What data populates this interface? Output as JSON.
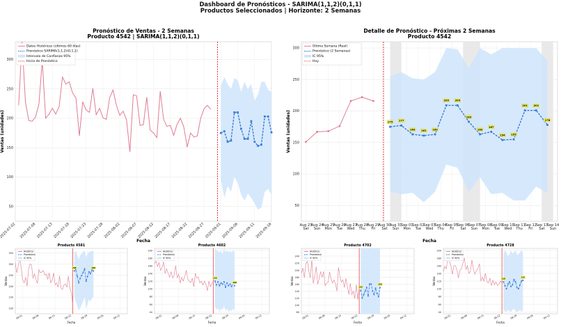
{
  "header": {
    "line1": "Dashboard de Pronósticos - SARIMA(1,1,2)(0,1,1)",
    "line2": "Productos Seleccionados | Horizonte: 2 Semanas"
  },
  "colors": {
    "hist": "#e07b91",
    "forecast": "#3b7dd8",
    "ci": "#cfe5fb",
    "cutoff": "#e32b2b",
    "label_bg": "#f5f56a",
    "weekend": "#e4e4e4"
  },
  "chart_data": [
    {
      "type": "line",
      "title": "Pronóstico de Ventas - 2 Semanas",
      "subtitle": "Producto 4542 | SARIMA(1,1,2)(0,1,1)",
      "xlabel": "Fecha",
      "ylabel": "Ventas (unidades)",
      "ylim": [
        25,
        330
      ],
      "yticks": [
        50,
        100,
        150,
        200,
        250,
        300
      ],
      "xlim": [
        0,
        76
      ],
      "xticks": [
        [
          0,
          "2025-07-02"
        ],
        [
          6,
          "2025-07-08"
        ],
        [
          11,
          "2025-07-13"
        ],
        [
          16,
          "2025-07-18"
        ],
        [
          21,
          "2025-07-23"
        ],
        [
          26,
          "2025-07-28"
        ],
        [
          31,
          "2025-08-02"
        ],
        [
          36,
          "2025-08-07"
        ],
        [
          41,
          "2025-08-12"
        ],
        [
          46,
          "2025-08-17"
        ],
        [
          51,
          "2025-08-22"
        ],
        [
          56,
          "2025-08-27"
        ],
        [
          61,
          "2025-09-01"
        ],
        [
          66,
          "2025-09-06"
        ],
        [
          71,
          "2025-09-11"
        ],
        [
          76,
          "2025-09-16"
        ]
      ],
      "legend": [
        "Datos Históricos (últimos 60 días)",
        "Pronóstico SARIMA(1,1,2)(0,1,1)",
        "Intervalo de Confianza 95%",
        "Inicio de Pronóstico"
      ],
      "legend_position": "top-left",
      "grid": true,
      "history_start": 1,
      "history": [
        222,
        330,
        228,
        196,
        195,
        202,
        224,
        298,
        200,
        207,
        217,
        207,
        220,
        270,
        258,
        262,
        243,
        234,
        170,
        228,
        214,
        210,
        251,
        206,
        217,
        201,
        198,
        235,
        248,
        222,
        205,
        212,
        197,
        143,
        240,
        238,
        188,
        189,
        236,
        180,
        175,
        167,
        246,
        198,
        186,
        188,
        171,
        190,
        200,
        185,
        151,
        175,
        168,
        170,
        200,
        216,
        222,
        215
      ],
      "forecast_start": 61,
      "forecast": [
        175,
        178,
        160,
        162,
        210,
        210,
        182,
        165,
        165,
        195,
        160,
        153,
        155,
        203,
        203,
        176
      ],
      "ci_upper": [
        255,
        270,
        258,
        250,
        268,
        265,
        245,
        262,
        250,
        258,
        230,
        240,
        262,
        262,
        248,
        245
      ],
      "ci_lower": [
        95,
        65,
        85,
        75,
        100,
        90,
        70,
        60,
        72,
        65,
        55,
        45,
        48,
        75,
        80,
        70
      ],
      "cutoff": 60
    },
    {
      "type": "line",
      "title": "Detalle de Pronóstico - Próximas 2 Semanas",
      "subtitle": "Producto 4542",
      "xlabel": "Fecha",
      "ylabel": "Ventas (unidades)",
      "ylim": [
        25,
        310
      ],
      "yticks": [
        50,
        100,
        150,
        200,
        250,
        300
      ],
      "xlim": [
        -0.4,
        22.4
      ],
      "xticks": [
        [
          "Aug 23",
          "Sat"
        ],
        [
          "Aug 24",
          "Sun"
        ],
        [
          "Aug 25",
          "Mon"
        ],
        [
          "Aug 26",
          "Tue"
        ],
        [
          "Aug 27",
          "Wed"
        ],
        [
          "Aug 28",
          "Thu"
        ],
        [
          "Aug 29",
          "Fri"
        ],
        [
          "Aug 30",
          "Sat"
        ],
        [
          "Aug 31",
          "Sun"
        ],
        [
          "Sep 01",
          "Mon"
        ],
        [
          "Sep 02",
          "Tue"
        ],
        [
          "Sep 03",
          "Wed"
        ],
        [
          "Sep 04",
          "Thu"
        ],
        [
          "Sep 05",
          "Fri"
        ],
        [
          "Sep 06",
          "Sat"
        ],
        [
          "Sep 07",
          "Sun"
        ],
        [
          "Sep 08",
          "Mon"
        ],
        [
          "Sep 09",
          "Tue"
        ],
        [
          "Sep 10",
          "Wed"
        ],
        [
          "Sep 11",
          "Thu"
        ],
        [
          "Sep 12",
          "Fri"
        ],
        [
          "Sep 13",
          "Sat"
        ],
        [
          "Sep 14",
          "Sun"
        ]
      ],
      "legend": [
        "Última Semana (Real)",
        "Pronóstico (2 Semanas)",
        "IC 95%",
        "Hoy"
      ],
      "legend_position": "top-left",
      "grid": true,
      "history_start": 0,
      "history": [
        151,
        167,
        168,
        176,
        216,
        222,
        216
      ],
      "forecast_start": 7.5,
      "forecast": [
        175,
        177,
        163,
        161,
        163,
        209,
        209,
        183,
        163,
        167,
        154,
        155,
        201,
        201,
        178
      ],
      "labels": [
        "175",
        "177",
        "163",
        "161",
        "163",
        "209",
        "209",
        "183",
        "163",
        "167",
        "154",
        "155",
        "201",
        "201",
        "178"
      ],
      "ci_upper": [
        255,
        262,
        252,
        250,
        262,
        300,
        298,
        268,
        300,
        290,
        300,
        300,
        300,
        300,
        280
      ],
      "ci_lower": [
        72,
        68,
        70,
        55,
        72,
        115,
        110,
        72,
        95,
        68,
        70,
        58,
        58,
        80,
        70
      ],
      "cutoff": 6.9,
      "weekend_shade": [
        [
          7.5,
          8.5
        ],
        [
          14,
          15.5
        ],
        [
          21,
          22
        ]
      ]
    },
    {
      "type": "line",
      "title": "Producto 4581",
      "xlabel": "Fecha",
      "ylabel": "Ventas",
      "ylim": [
        75,
        370
      ],
      "yticks": [
        100,
        150,
        200,
        250,
        300,
        350
      ],
      "xlim": [
        0,
        76
      ],
      "xticks": [
        [
          5,
          "08-01"
        ],
        [
          16,
          "08-08"
        ],
        [
          27,
          "08-15"
        ],
        [
          38,
          "08-22"
        ],
        [
          49,
          "08-29"
        ],
        [
          60,
          "09-05"
        ],
        [
          71,
          "09-12"
        ]
      ],
      "legend": [
        "Histórico",
        "Pronóstico",
        "IC 95%"
      ],
      "history_start": 0,
      "history": [
        305,
        260,
        290,
        330,
        282,
        228,
        215,
        240,
        200,
        278,
        300,
        295,
        235,
        255,
        230,
        212,
        274,
        260,
        263,
        270,
        250,
        255,
        230,
        260,
        215,
        225,
        260,
        205,
        215,
        195,
        245,
        190,
        185,
        205,
        210,
        195,
        245,
        190,
        170,
        120
      ],
      "forecast_start": 40,
      "forecast": [
        268,
        275,
        245,
        215,
        235,
        248,
        262,
        278,
        222,
        244,
        264,
        256,
        272,
        268
      ],
      "ci_upper": [
        350,
        360,
        340,
        320,
        340,
        345,
        355,
        360,
        330,
        345,
        355,
        355,
        360,
        358
      ],
      "ci_lower": [
        150,
        130,
        110,
        90,
        100,
        115,
        130,
        150,
        100,
        120,
        140,
        130,
        145,
        150
      ],
      "labels": {
        "first": "268",
        "last": "268"
      },
      "cutoff": 39
    },
    {
      "type": "line",
      "title": "Producto 4602",
      "xlabel": "Fecha",
      "ylabel": "Ventas",
      "ylim": [
        35,
        205
      ],
      "yticks": [
        40,
        60,
        80,
        100,
        120,
        140,
        160,
        180,
        200
      ],
      "xlim": [
        0,
        76
      ],
      "xticks": [
        [
          5,
          "08-01"
        ],
        [
          16,
          "08-08"
        ],
        [
          27,
          "08-15"
        ],
        [
          38,
          "08-22"
        ],
        [
          49,
          "08-29"
        ],
        [
          60,
          "09-05"
        ],
        [
          71,
          "09-12"
        ]
      ],
      "legend": [
        "Histórico",
        "Pronóstico",
        "IC 95%"
      ],
      "history_start": 0,
      "history": [
        165,
        172,
        158,
        168,
        148,
        155,
        170,
        140,
        152,
        140,
        130,
        144,
        128,
        135,
        160,
        128,
        138,
        115,
        130,
        120,
        132,
        148,
        125,
        120,
        116,
        128,
        105,
        140,
        128,
        130,
        115,
        120,
        110,
        120,
        112,
        95,
        120,
        105,
        115,
        118
      ],
      "forecast_start": 40,
      "forecast": [
        120,
        110,
        118,
        108,
        115,
        112,
        118,
        104,
        115,
        108,
        112,
        106,
        115,
        108
      ],
      "ci_upper": [
        205,
        200,
        198,
        195,
        200,
        190,
        205,
        195,
        200,
        195,
        198,
        195,
        200,
        196
      ],
      "ci_lower": [
        55,
        45,
        50,
        40,
        48,
        45,
        55,
        42,
        48,
        40,
        45,
        42,
        48,
        42
      ],
      "labels": {
        "first": "120",
        "last": "108"
      },
      "cutoff": 39
    },
    {
      "type": "line",
      "title": "Producto 4702",
      "xlabel": "Fecha",
      "ylabel": "Ventas",
      "ylim": [
        75,
        262
      ],
      "yticks": [
        80,
        100,
        120,
        140,
        160,
        180,
        200,
        220,
        240
      ],
      "xlim": [
        0,
        76
      ],
      "xticks": [
        [
          5,
          "08-01"
        ],
        [
          16,
          "08-08"
        ],
        [
          27,
          "08-15"
        ],
        [
          38,
          "08-22"
        ],
        [
          49,
          "08-29"
        ],
        [
          60,
          "09-05"
        ],
        [
          71,
          "09-12"
        ]
      ],
      "legend": [
        "Histórico",
        "Pronóstico",
        "IC 95%"
      ],
      "history_start": 0,
      "history": [
        190,
        206,
        178,
        218,
        225,
        198,
        178,
        230,
        162,
        182,
        210,
        160,
        175,
        196,
        180,
        196,
        155,
        163,
        165,
        195,
        175,
        163,
        172,
        160,
        140,
        208,
        180,
        165,
        172,
        150,
        176,
        155,
        130,
        162,
        130,
        140,
        118,
        158,
        115,
        150
      ],
      "forecast_start": 40,
      "forecast": [
        142,
        120,
        130,
        140,
        150,
        126,
        160,
        160,
        140,
        130,
        148,
        133,
        124,
        150
      ],
      "ci_upper": [
        262,
        262,
        262,
        262,
        262,
        262,
        262,
        262,
        262,
        262,
        262,
        262,
        262,
        262
      ],
      "ci_lower": [
        75,
        75,
        75,
        75,
        75,
        75,
        75,
        75,
        75,
        75,
        75,
        75,
        75,
        75
      ],
      "labels": {
        "first": "142",
        "last": "150"
      },
      "cutoff": 39
    },
    {
      "type": "line",
      "title": "Producto 4728",
      "xlabel": "Fecha",
      "ylabel": "Ventas",
      "ylim": [
        35,
        205
      ],
      "yticks": [
        40,
        60,
        80,
        100,
        120,
        140,
        160,
        180,
        200
      ],
      "xlim": [
        0,
        76
      ],
      "xticks": [
        [
          5,
          "08-01"
        ],
        [
          16,
          "08-08"
        ],
        [
          27,
          "08-15"
        ],
        [
          38,
          "08-22"
        ],
        [
          49,
          "08-29"
        ],
        [
          60,
          "09-05"
        ],
        [
          71,
          "09-12"
        ]
      ],
      "legend": [
        "Histórico",
        "Pronóstico",
        "IC 95%"
      ],
      "history_start": 0,
      "history": [
        145,
        158,
        152,
        185,
        172,
        160,
        138,
        160,
        160,
        150,
        128,
        148,
        152,
        166,
        180,
        150,
        160,
        140,
        145,
        175,
        150,
        138,
        148,
        152,
        165,
        120,
        130,
        120,
        140,
        118,
        115,
        128,
        108,
        122,
        110,
        118,
        108,
        112,
        120,
        115
      ],
      "forecast_start": 40,
      "forecast": [
        118,
        108,
        100,
        112,
        118,
        106,
        110,
        124,
        118,
        103,
        100,
        110,
        120,
        122
      ],
      "ci_upper": [
        190,
        200,
        195,
        185,
        190,
        200,
        192,
        195,
        200,
        188,
        190,
        195,
        200,
        195
      ],
      "ci_lower": [
        45,
        42,
        40,
        45,
        42,
        40,
        45,
        48,
        42,
        40,
        42,
        45,
        40,
        45
      ],
      "labels": {
        "first": "118",
        "last": "122"
      },
      "cutoff": 39
    }
  ]
}
